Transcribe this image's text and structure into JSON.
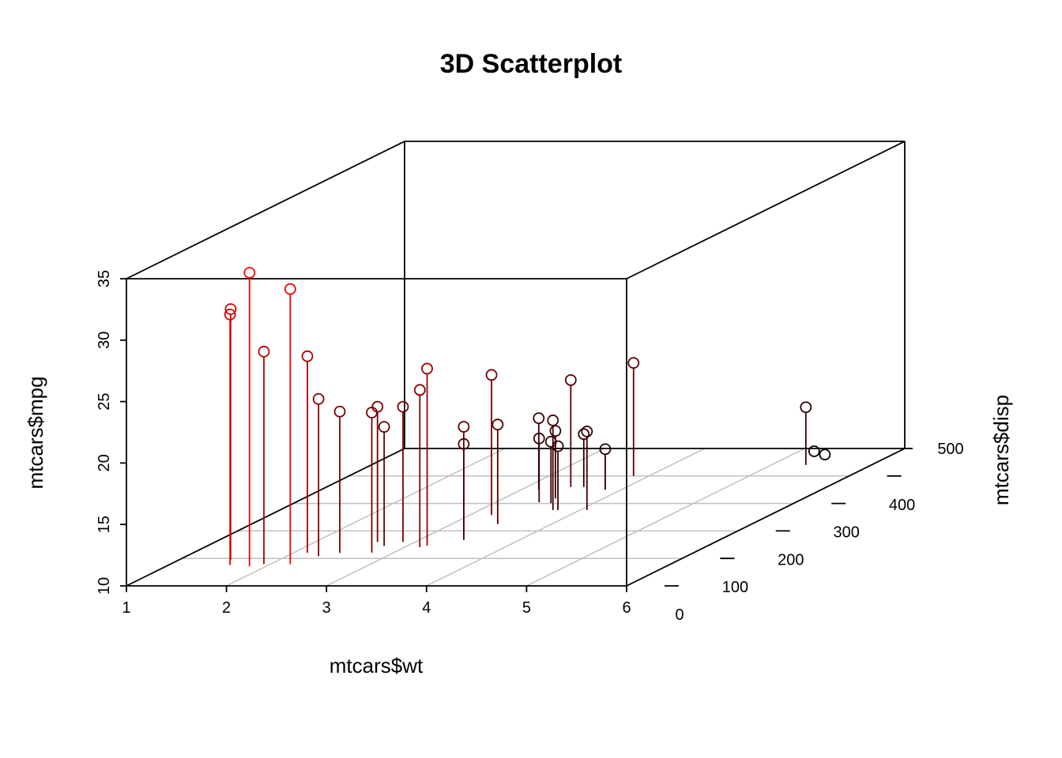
{
  "chart_data": {
    "type": "scatter",
    "title": "3D Scatterplot",
    "xlabel": "mtcars$wt",
    "ylabel": "mtcars$disp",
    "zlabel": "mtcars$mpg",
    "xlim": [
      1,
      6
    ],
    "ylim": [
      0,
      500
    ],
    "zlim": [
      10,
      35
    ],
    "x_ticks": [
      "1",
      "2",
      "3",
      "4",
      "5",
      "6"
    ],
    "y_ticks": [
      "0",
      "100",
      "200",
      "300",
      "400",
      "500"
    ],
    "z_ticks": [
      "10",
      "15",
      "20",
      "25",
      "30",
      "35"
    ],
    "grid": true,
    "drop_lines": true,
    "color_gradient": [
      "#ff0000",
      "#000000"
    ],
    "points": [
      {
        "x": 2.62,
        "y": 160,
        "z": 21.0
      },
      {
        "x": 2.875,
        "y": 160,
        "z": 21.0
      },
      {
        "x": 2.32,
        "y": 108,
        "z": 22.8
      },
      {
        "x": 3.215,
        "y": 258,
        "z": 21.4
      },
      {
        "x": 3.44,
        "y": 360,
        "z": 18.7
      },
      {
        "x": 3.46,
        "y": 225,
        "z": 18.1
      },
      {
        "x": 3.57,
        "y": 360,
        "z": 14.3
      },
      {
        "x": 3.19,
        "y": 146.7,
        "z": 24.4
      },
      {
        "x": 3.15,
        "y": 140.8,
        "z": 22.8
      },
      {
        "x": 3.44,
        "y": 167.6,
        "z": 19.2
      },
      {
        "x": 3.44,
        "y": 167.6,
        "z": 17.8
      },
      {
        "x": 4.07,
        "y": 275.8,
        "z": 16.4
      },
      {
        "x": 3.73,
        "y": 275.8,
        "z": 17.3
      },
      {
        "x": 3.78,
        "y": 275.8,
        "z": 15.2
      },
      {
        "x": 5.25,
        "y": 472,
        "z": 10.4
      },
      {
        "x": 5.424,
        "y": 460,
        "z": 10.4
      },
      {
        "x": 5.345,
        "y": 440,
        "z": 14.7
      },
      {
        "x": 2.2,
        "y": 78.7,
        "z": 32.4
      },
      {
        "x": 1.615,
        "y": 75.7,
        "z": 30.4
      },
      {
        "x": 1.835,
        "y": 71.1,
        "z": 33.9
      },
      {
        "x": 2.465,
        "y": 120.1,
        "z": 21.5
      },
      {
        "x": 3.52,
        "y": 318,
        "z": 15.5
      },
      {
        "x": 3.435,
        "y": 304,
        "z": 15.2
      },
      {
        "x": 3.84,
        "y": 350,
        "z": 13.3
      },
      {
        "x": 3.845,
        "y": 400,
        "z": 19.2
      },
      {
        "x": 1.935,
        "y": 79,
        "z": 27.3
      },
      {
        "x": 2.14,
        "y": 120.3,
        "z": 26.0
      },
      {
        "x": 1.513,
        "y": 95.1,
        "z": 30.4
      },
      {
        "x": 3.17,
        "y": 351,
        "z": 15.8
      },
      {
        "x": 2.77,
        "y": 145,
        "z": 19.7
      },
      {
        "x": 3.57,
        "y": 301,
        "z": 15.0
      },
      {
        "x": 2.78,
        "y": 121,
        "z": 21.4
      }
    ]
  }
}
